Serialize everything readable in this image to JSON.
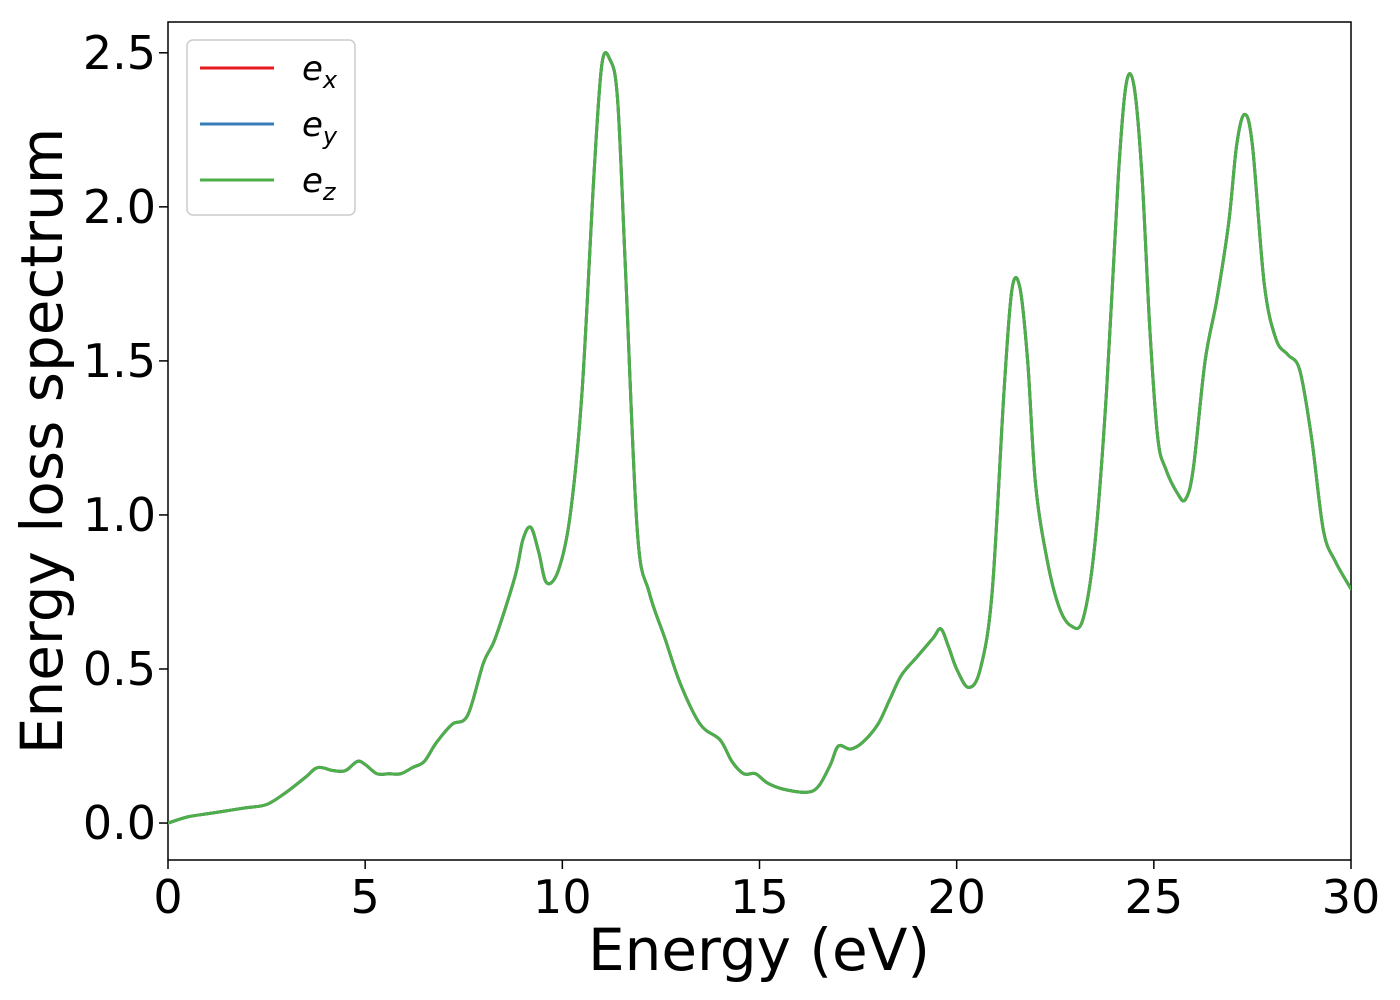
{
  "chart_data": {
    "type": "line",
    "title": "",
    "xlabel": "Energy (eV)",
    "ylabel": "Energy loss spectrum",
    "xlim": [
      0,
      30
    ],
    "ylim": [
      -0.12,
      2.6
    ],
    "xticks": [
      "0",
      "5",
      "10",
      "15",
      "20",
      "25",
      "30"
    ],
    "yticks": [
      "0.0",
      "0.5",
      "1.0",
      "1.5",
      "2.0",
      "2.5"
    ],
    "grid": false,
    "legend_position": "top-left",
    "legend": [
      {
        "base": "e",
        "sub": "x"
      },
      {
        "base": "e",
        "sub": "y"
      },
      {
        "base": "e",
        "sub": "z"
      }
    ],
    "x": [
      0,
      0.5,
      1.0,
      1.5,
      2.0,
      2.5,
      3.0,
      3.5,
      3.8,
      4.2,
      4.5,
      4.8,
      5.0,
      5.3,
      5.6,
      5.9,
      6.2,
      6.5,
      6.8,
      7.2,
      7.6,
      8.0,
      8.3,
      8.8,
      9.0,
      9.2,
      9.4,
      9.6,
      9.9,
      10.2,
      10.5,
      10.8,
      11.0,
      11.2,
      11.4,
      11.6,
      11.9,
      12.2,
      12.6,
      13.0,
      13.5,
      14.0,
      14.3,
      14.6,
      14.9,
      15.2,
      15.6,
      16.2,
      16.5,
      16.8,
      17.0,
      17.3,
      17.6,
      18.0,
      18.3,
      18.6,
      19.0,
      19.4,
      19.6,
      19.8,
      20.0,
      20.3,
      20.6,
      20.9,
      21.2,
      21.4,
      21.6,
      21.8,
      22.0,
      22.3,
      22.6,
      22.9,
      23.2,
      23.5,
      23.8,
      24.1,
      24.3,
      24.5,
      24.7,
      24.9,
      25.1,
      25.3,
      25.6,
      25.8,
      26.0,
      26.3,
      26.6,
      26.9,
      27.1,
      27.3,
      27.5,
      27.8,
      28.1,
      28.4,
      28.7,
      29.0,
      29.3,
      29.6,
      30.0
    ],
    "series": [
      {
        "name": "e_x",
        "color": "#e41a1c",
        "values": [
          0.0,
          0.02,
          0.03,
          0.04,
          0.05,
          0.06,
          0.1,
          0.15,
          0.18,
          0.17,
          0.17,
          0.2,
          0.19,
          0.16,
          0.16,
          0.16,
          0.18,
          0.2,
          0.26,
          0.32,
          0.35,
          0.52,
          0.6,
          0.8,
          0.92,
          0.96,
          0.88,
          0.78,
          0.82,
          1.0,
          1.4,
          2.1,
          2.46,
          2.48,
          2.35,
          1.8,
          0.95,
          0.75,
          0.6,
          0.45,
          0.32,
          0.27,
          0.2,
          0.16,
          0.16,
          0.13,
          0.11,
          0.1,
          0.12,
          0.19,
          0.25,
          0.24,
          0.26,
          0.32,
          0.4,
          0.48,
          0.54,
          0.6,
          0.63,
          0.57,
          0.5,
          0.44,
          0.5,
          0.75,
          1.4,
          1.73,
          1.74,
          1.5,
          1.1,
          0.85,
          0.7,
          0.64,
          0.66,
          0.9,
          1.4,
          2.1,
          2.4,
          2.39,
          2.1,
          1.6,
          1.25,
          1.15,
          1.07,
          1.05,
          1.15,
          1.5,
          1.7,
          1.95,
          2.2,
          2.3,
          2.2,
          1.75,
          1.57,
          1.52,
          1.47,
          1.25,
          0.95,
          0.85,
          0.76
        ]
      },
      {
        "name": "e_y",
        "color": "#377eb8",
        "values": [
          0.0,
          0.02,
          0.03,
          0.04,
          0.05,
          0.06,
          0.1,
          0.15,
          0.18,
          0.17,
          0.17,
          0.2,
          0.19,
          0.16,
          0.16,
          0.16,
          0.18,
          0.2,
          0.26,
          0.32,
          0.35,
          0.52,
          0.6,
          0.8,
          0.92,
          0.96,
          0.88,
          0.78,
          0.82,
          1.0,
          1.4,
          2.1,
          2.46,
          2.48,
          2.35,
          1.8,
          0.95,
          0.75,
          0.6,
          0.45,
          0.32,
          0.27,
          0.2,
          0.16,
          0.16,
          0.13,
          0.11,
          0.1,
          0.12,
          0.19,
          0.25,
          0.24,
          0.26,
          0.32,
          0.4,
          0.48,
          0.54,
          0.6,
          0.63,
          0.57,
          0.5,
          0.44,
          0.5,
          0.75,
          1.4,
          1.73,
          1.74,
          1.5,
          1.1,
          0.85,
          0.7,
          0.64,
          0.66,
          0.9,
          1.4,
          2.1,
          2.4,
          2.39,
          2.1,
          1.6,
          1.25,
          1.15,
          1.07,
          1.05,
          1.15,
          1.5,
          1.7,
          1.95,
          2.2,
          2.3,
          2.2,
          1.75,
          1.57,
          1.52,
          1.47,
          1.25,
          0.95,
          0.85,
          0.76
        ]
      },
      {
        "name": "e_z",
        "color": "#4daf4a",
        "values": [
          0.0,
          0.02,
          0.03,
          0.04,
          0.05,
          0.06,
          0.1,
          0.15,
          0.18,
          0.17,
          0.17,
          0.2,
          0.19,
          0.16,
          0.16,
          0.16,
          0.18,
          0.2,
          0.26,
          0.32,
          0.35,
          0.52,
          0.6,
          0.8,
          0.92,
          0.96,
          0.88,
          0.78,
          0.82,
          1.0,
          1.4,
          2.1,
          2.46,
          2.48,
          2.35,
          1.8,
          0.95,
          0.75,
          0.6,
          0.45,
          0.32,
          0.27,
          0.2,
          0.16,
          0.16,
          0.13,
          0.11,
          0.1,
          0.12,
          0.19,
          0.25,
          0.24,
          0.26,
          0.32,
          0.4,
          0.48,
          0.54,
          0.6,
          0.63,
          0.57,
          0.5,
          0.44,
          0.5,
          0.75,
          1.4,
          1.73,
          1.74,
          1.5,
          1.1,
          0.85,
          0.7,
          0.64,
          0.66,
          0.9,
          1.4,
          2.1,
          2.4,
          2.39,
          2.1,
          1.6,
          1.25,
          1.15,
          1.07,
          1.05,
          1.15,
          1.5,
          1.7,
          1.95,
          2.2,
          2.3,
          2.2,
          1.75,
          1.57,
          1.52,
          1.47,
          1.25,
          0.95,
          0.85,
          0.76
        ]
      }
    ]
  }
}
